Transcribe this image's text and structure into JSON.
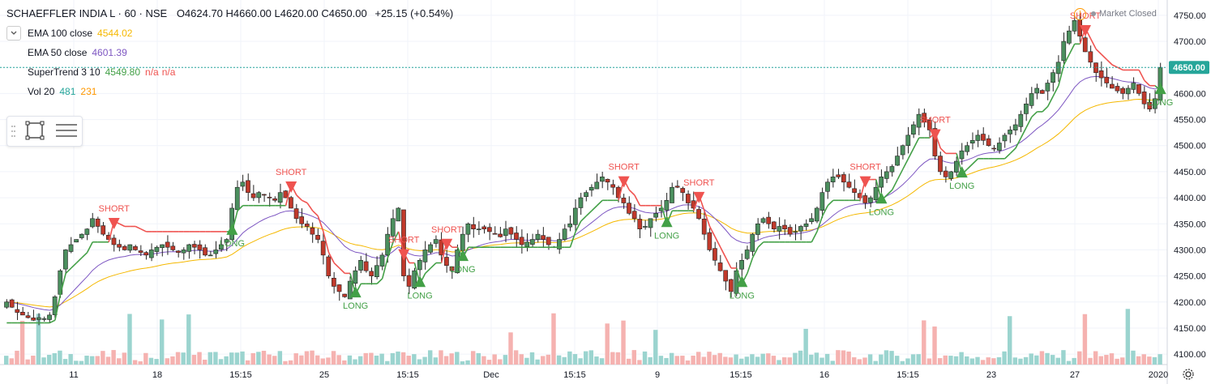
{
  "header": {
    "symbol": "SCHAEFFLER INDIA L · 60 · NSE",
    "ohlc": "O4624.70  H4660.00  L4620.00  C4650.00",
    "change": "+25.15 (+0.54%)"
  },
  "indicators": [
    {
      "label": "EMA 100 close",
      "value": "4544.02",
      "color": "#f5b800"
    },
    {
      "label": "EMA 50 close",
      "value": "4601.39",
      "color": "#7e57c2"
    },
    {
      "label": "SuperTrend 3 10",
      "value": "4549.80",
      "extra": "n/a",
      "extra2": "n/a",
      "color": "#43a047",
      "extra_color": "#ef5350"
    },
    {
      "label": "Vol 20",
      "value": "481",
      "value2": "231",
      "color": "#26a69a",
      "color2": "#ff9800"
    }
  ],
  "market_status": "Market Closed",
  "colors": {
    "up": "#26a69a",
    "down": "#ef5350",
    "body_up": "#4b8f5e",
    "body_down": "#c0392b",
    "ema100": "#f5b800",
    "ema50": "#7e57c2",
    "st_long": "#43a047",
    "st_short": "#ef5350",
    "grid": "#f0f3fa",
    "axis_text": "#131722"
  },
  "chart_data": {
    "type": "candlestick",
    "y_axis": {
      "ticks": [
        4100,
        4150,
        4200,
        4250,
        4300,
        4350,
        4400,
        4450,
        4500,
        4550,
        4600,
        4650,
        4700,
        4750
      ],
      "range": [
        4080,
        4770
      ]
    },
    "x_axis": {
      "ticks": [
        "11",
        "18",
        "15:15",
        "25",
        "15:15",
        "Dec",
        "15:15",
        "9",
        "15:15",
        "16",
        "15:15",
        "23",
        "27",
        "2020"
      ]
    },
    "last_price": {
      "label": "4650.00",
      "value": 4650
    },
    "signals": [
      {
        "type": "LONG",
        "value": 4240
      },
      {
        "type": "SHORT",
        "value": 4410
      },
      {
        "type": "SHORT",
        "value": 4480
      },
      {
        "type": "LONG",
        "value": 4255
      },
      {
        "type": "LONG",
        "value": 4245
      },
      {
        "type": "SHORT",
        "value": 4410
      },
      {
        "type": "LONG",
        "value": 4290
      },
      {
        "type": "SHORT",
        "value": 4590
      },
      {
        "type": "LONG",
        "value": 4520
      }
    ],
    "close_series": [
      4200,
      4190,
      4180,
      4175,
      4170,
      4165,
      4170,
      4168,
      4175,
      4210,
      4260,
      4300,
      4310,
      4320,
      4330,
      4340,
      4360,
      4345,
      4330,
      4320,
      4310,
      4305,
      4300,
      4310,
      4300,
      4295,
      4290,
      4300,
      4305,
      4310,
      4305,
      4300,
      4295,
      4300,
      4310,
      4305,
      4300,
      4290,
      4290,
      4300,
      4310,
      4320,
      4380,
      4420,
      4430,
      4410,
      4400,
      4410,
      4405,
      4400,
      4395,
      4410,
      4400,
      4380,
      4360,
      4350,
      4345,
      4330,
      4320,
      4290,
      4250,
      4230,
      4220,
      4210,
      4240,
      4260,
      4280,
      4260,
      4250,
      4270,
      4290,
      4330,
      4360,
      4380,
      4250,
      4230,
      4260,
      4280,
      4300,
      4310,
      4320,
      4290,
      4270,
      4260,
      4300,
      4330,
      4350,
      4340,
      4340,
      4340,
      4335,
      4330,
      4325,
      4340,
      4330,
      4320,
      4310,
      4315,
      4320,
      4330,
      4320,
      4310,
      4305,
      4320,
      4340,
      4350,
      4380,
      4400,
      4410,
      4420,
      4430,
      4440,
      4430,
      4420,
      4400,
      4390,
      4370,
      4360,
      4340,
      4345,
      4360,
      4370,
      4380,
      4395,
      4420,
      4420,
      4410,
      4390,
      4380,
      4360,
      4330,
      4300,
      4280,
      4260,
      4240,
      4220,
      4260,
      4280,
      4300,
      4330,
      4350,
      4360,
      4350,
      4340,
      4345,
      4340,
      4330,
      4335,
      4345,
      4350,
      4360,
      4380,
      4410,
      4430,
      4440,
      4440,
      4430,
      4420,
      4410,
      4400,
      4390,
      4400,
      4420,
      4440,
      4450,
      4460,
      4480,
      4500,
      4520,
      4540,
      4560,
      4545,
      4530,
      4480,
      4450,
      4440,
      4450,
      4470,
      4490,
      4500,
      4510,
      4520,
      4510,
      4500,
      4495,
      4505,
      4520,
      4530,
      4540,
      4560,
      4580,
      4600,
      4610,
      4600,
      4620,
      4640,
      4660,
      4700,
      4720,
      4740,
      4710,
      4680,
      4660,
      4640,
      4630,
      4620,
      4610,
      4605,
      4600,
      4610,
      4620,
      4600,
      4580,
      4570,
      4590,
      4650
    ]
  },
  "volume_data": {
    "label": "Vol 20"
  }
}
